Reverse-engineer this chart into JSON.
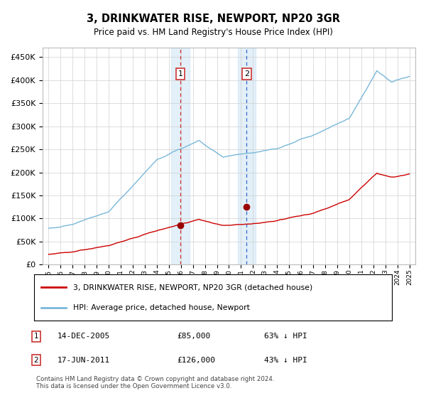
{
  "title": "3, DRINKWATER RISE, NEWPORT, NP20 3GR",
  "subtitle": "Price paid vs. HM Land Registry's House Price Index (HPI)",
  "hpi_color": "#7ab8d9",
  "price_color": "#cc0000",
  "sale1_date_x": 2005.95,
  "sale1_price": 85000,
  "sale2_date_x": 2011.46,
  "sale2_price": 126000,
  "ylim_max": 470000,
  "ylim_min": 0,
  "xlim_min": 1994.5,
  "xlim_max": 2025.5,
  "footer": "Contains HM Land Registry data © Crown copyright and database right 2024.\nThis data is licensed under the Open Government Licence v3.0.",
  "legend_label1": "3, DRINKWATER RISE, NEWPORT, NP20 3GR (detached house)",
  "legend_label2": "HPI: Average price, detached house, Newport"
}
